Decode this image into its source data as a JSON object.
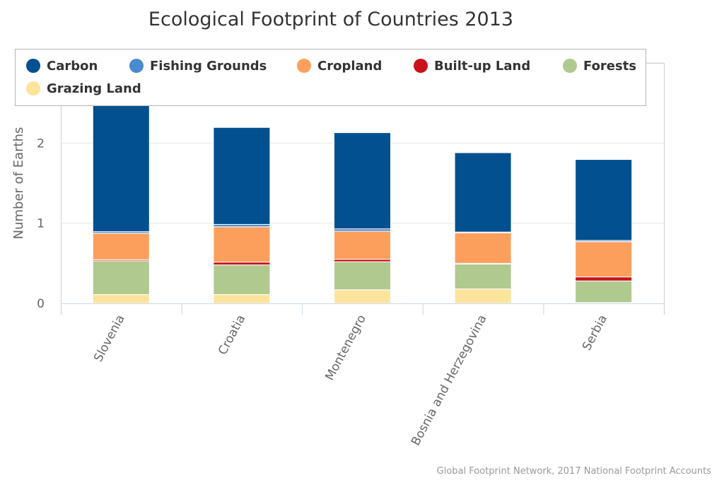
{
  "chart_data": {
    "type": "bar",
    "stacked": true,
    "title": "Ecological Footprint of Countries 2013",
    "xlabel": "",
    "ylabel": "Number of Earths",
    "ylim": [
      0,
      3
    ],
    "yticks": [
      "0",
      "1",
      "2",
      "3"
    ],
    "grid": true,
    "legend_position": "top",
    "categories": [
      "Slovenia",
      "Croatia",
      "Montenegro",
      "Bosnia and Herzegovina",
      "Serbia"
    ],
    "series": [
      {
        "name": "Carbon",
        "color": "#02508f",
        "values": [
          1.86,
          1.21,
          1.2,
          0.99,
          1.01
        ]
      },
      {
        "name": "Fishing Grounds",
        "color": "#4a8bd0",
        "values": [
          0.02,
          0.03,
          0.03,
          0.01,
          0.015
        ]
      },
      {
        "name": "Cropland",
        "color": "#fd9f5c",
        "values": [
          0.33,
          0.44,
          0.35,
          0.38,
          0.44
        ]
      },
      {
        "name": "Built-up Land",
        "color": "#c8121c",
        "values": [
          0.015,
          0.035,
          0.03,
          0.01,
          0.05
        ]
      },
      {
        "name": "Forests",
        "color": "#b0c98f",
        "values": [
          0.42,
          0.37,
          0.35,
          0.31,
          0.27
        ]
      },
      {
        "name": "Grazing Land",
        "color": "#fde49c",
        "values": [
          0.11,
          0.11,
          0.17,
          0.18,
          0.01
        ]
      }
    ],
    "credits": "Global Footprint Network, 2017 National Footprint Accounts"
  }
}
